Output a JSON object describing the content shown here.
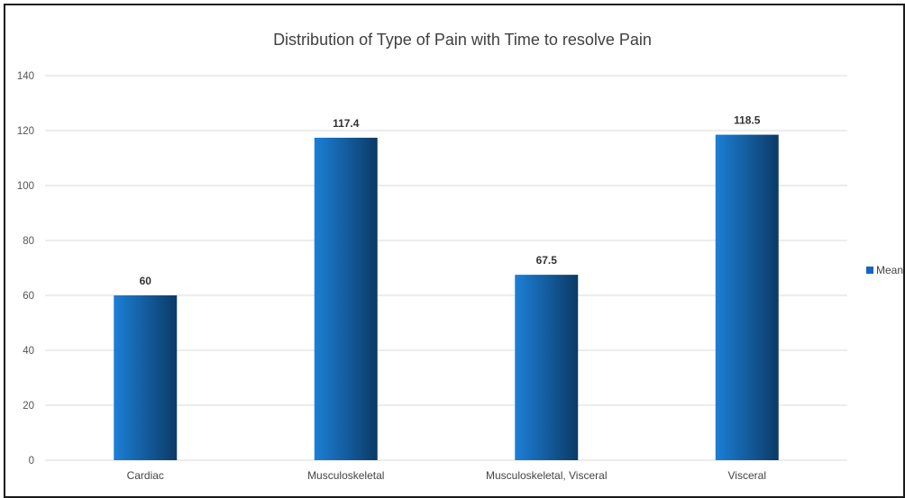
{
  "chart_data": {
    "type": "bar",
    "title": "Distribution of Type of Pain with Time to resolve Pain",
    "categories": [
      "Cardiac",
      "Musculoskeletal",
      "Musculoskeletal, Visceral",
      "Visceral"
    ],
    "series": [
      {
        "name": "Mean",
        "values": [
          60,
          117.4,
          67.5,
          118.5
        ],
        "data_labels": [
          "60",
          "117.4",
          "67.5",
          "118.5"
        ]
      }
    ],
    "ylim": [
      0,
      140
    ],
    "yticks": [
      0,
      20,
      40,
      60,
      80,
      100,
      120,
      140
    ],
    "ytick_labels": [
      "0",
      "20",
      "40",
      "60",
      "80",
      "100",
      "120",
      "140"
    ],
    "xlabel": "",
    "ylabel": "",
    "grid": true,
    "legend_position": "right",
    "colors": {
      "bar_light": "#1c7fd6",
      "bar_dark": "#0b3a66",
      "legend_swatch": "#1565c0"
    }
  }
}
